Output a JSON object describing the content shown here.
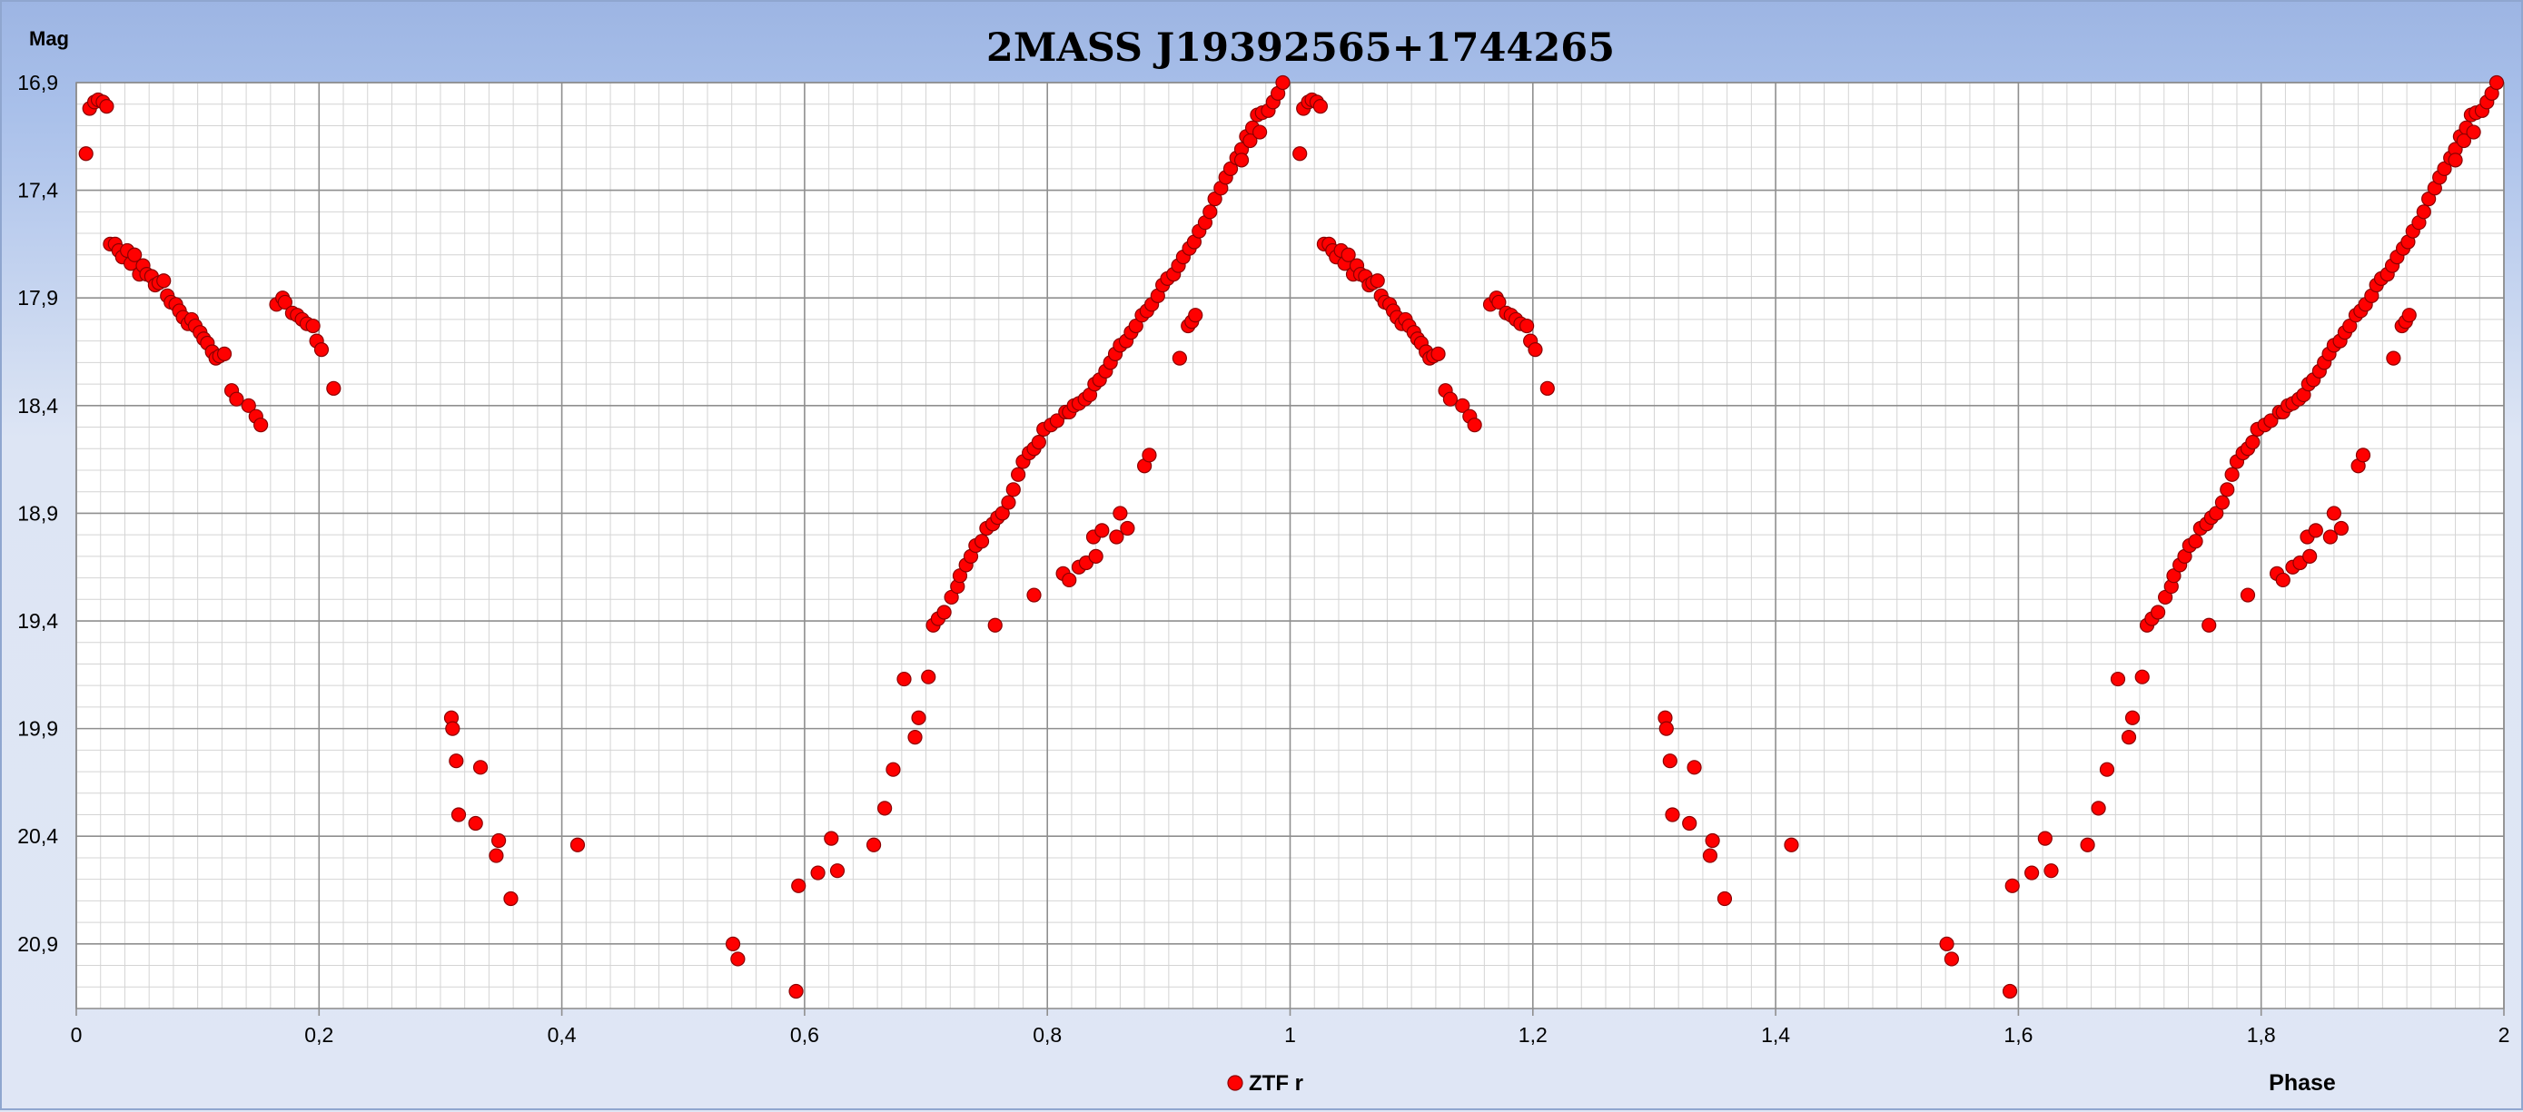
{
  "chart_data": {
    "type": "scatter",
    "title": "2MASS J19392565+1744265",
    "ylabel": "Mag",
    "xlabel": "Phase",
    "xlim": [
      0,
      2
    ],
    "ylim": [
      21.2,
      16.9
    ],
    "y_inverted": true,
    "x_major_ticks": [
      0,
      0.2,
      0.4,
      0.6,
      0.8,
      1,
      1.2,
      1.4,
      1.6,
      1.8,
      2
    ],
    "x_tick_labels": [
      "0",
      "0,2",
      "0,4",
      "0,6",
      "0,8",
      "1",
      "1,2",
      "1,4",
      "1,6",
      "1,8",
      "2"
    ],
    "y_major_ticks": [
      16.9,
      17.4,
      17.9,
      18.4,
      18.9,
      19.4,
      19.9,
      20.4,
      20.9
    ],
    "y_tick_labels": [
      "16,9",
      "17,4",
      "17,9",
      "18,4",
      "18,9",
      "19,4",
      "19,9",
      "20,4",
      "20,9"
    ],
    "grid": true,
    "legend": "bottom-center",
    "series": [
      {
        "name": "ZTF r",
        "color": "#ff0000",
        "points": [
          [
            0.008,
            17.23
          ],
          [
            0.011,
            17.02
          ],
          [
            0.015,
            16.99
          ],
          [
            0.018,
            16.98
          ],
          [
            0.022,
            16.99
          ],
          [
            0.025,
            17.01
          ],
          [
            0.028,
            17.65
          ],
          [
            0.032,
            17.65
          ],
          [
            0.035,
            17.68
          ],
          [
            0.038,
            17.71
          ],
          [
            0.042,
            17.68
          ],
          [
            0.045,
            17.74
          ],
          [
            0.048,
            17.7
          ],
          [
            0.052,
            17.79
          ],
          [
            0.055,
            17.75
          ],
          [
            0.058,
            17.79
          ],
          [
            0.062,
            17.8
          ],
          [
            0.065,
            17.84
          ],
          [
            0.068,
            17.83
          ],
          [
            0.072,
            17.82
          ],
          [
            0.075,
            17.89
          ],
          [
            0.078,
            17.92
          ],
          [
            0.082,
            17.93
          ],
          [
            0.085,
            17.96
          ],
          [
            0.088,
            17.99
          ],
          [
            0.092,
            18.02
          ],
          [
            0.095,
            18.0
          ],
          [
            0.098,
            18.03
          ],
          [
            0.102,
            18.06
          ],
          [
            0.105,
            18.09
          ],
          [
            0.108,
            18.11
          ],
          [
            0.112,
            18.15
          ],
          [
            0.115,
            18.18
          ],
          [
            0.118,
            18.17
          ],
          [
            0.122,
            18.16
          ],
          [
            0.128,
            18.33
          ],
          [
            0.132,
            18.37
          ],
          [
            0.142,
            18.4
          ],
          [
            0.148,
            18.45
          ],
          [
            0.152,
            18.49
          ],
          [
            0.165,
            17.93
          ],
          [
            0.17,
            17.9
          ],
          [
            0.172,
            17.92
          ],
          [
            0.178,
            17.97
          ],
          [
            0.182,
            17.98
          ],
          [
            0.186,
            18.0
          ],
          [
            0.19,
            18.02
          ],
          [
            0.195,
            18.03
          ],
          [
            0.198,
            18.1
          ],
          [
            0.202,
            18.14
          ],
          [
            0.212,
            18.32
          ],
          [
            0.309,
            19.85
          ],
          [
            0.31,
            19.9
          ],
          [
            0.313,
            20.05
          ],
          [
            0.315,
            20.3
          ],
          [
            0.329,
            20.34
          ],
          [
            0.333,
            20.08
          ],
          [
            0.346,
            20.49
          ],
          [
            0.348,
            20.42
          ],
          [
            0.358,
            20.69
          ],
          [
            0.413,
            20.44
          ],
          [
            0.541,
            20.9
          ],
          [
            0.545,
            20.97
          ],
          [
            0.593,
            21.12
          ],
          [
            0.595,
            20.63
          ],
          [
            0.611,
            20.57
          ],
          [
            0.622,
            20.41
          ],
          [
            0.627,
            20.56
          ],
          [
            0.657,
            20.44
          ],
          [
            0.666,
            20.27
          ],
          [
            0.673,
            20.09
          ],
          [
            0.682,
            19.67
          ],
          [
            0.691,
            19.94
          ],
          [
            0.694,
            19.85
          ],
          [
            0.702,
            19.66
          ],
          [
            0.706,
            19.42
          ],
          [
            0.71,
            19.39
          ],
          [
            0.715,
            19.36
          ],
          [
            0.721,
            19.29
          ],
          [
            0.726,
            19.24
          ],
          [
            0.728,
            19.19
          ],
          [
            0.733,
            19.14
          ],
          [
            0.737,
            19.1
          ],
          [
            0.741,
            19.05
          ],
          [
            0.746,
            19.03
          ],
          [
            0.75,
            18.97
          ],
          [
            0.755,
            18.95
          ],
          [
            0.759,
            18.92
          ],
          [
            0.763,
            18.9
          ],
          [
            0.768,
            18.85
          ],
          [
            0.772,
            18.79
          ],
          [
            0.776,
            18.72
          ],
          [
            0.78,
            18.66
          ],
          [
            0.785,
            18.62
          ],
          [
            0.789,
            18.6
          ],
          [
            0.793,
            18.57
          ],
          [
            0.797,
            18.51
          ],
          [
            0.803,
            18.49
          ],
          [
            0.808,
            18.47
          ],
          [
            0.815,
            18.43
          ],
          [
            0.818,
            18.43
          ],
          [
            0.822,
            18.4
          ],
          [
            0.826,
            18.39
          ],
          [
            0.831,
            18.37
          ],
          [
            0.835,
            18.35
          ],
          [
            0.839,
            18.3
          ],
          [
            0.843,
            18.28
          ],
          [
            0.848,
            18.24
          ],
          [
            0.852,
            18.2
          ],
          [
            0.856,
            18.16
          ],
          [
            0.86,
            18.12
          ],
          [
            0.865,
            18.1
          ],
          [
            0.869,
            18.06
          ],
          [
            0.873,
            18.03
          ],
          [
            0.878,
            17.98
          ],
          [
            0.882,
            17.96
          ],
          [
            0.886,
            17.93
          ],
          [
            0.891,
            17.89
          ],
          [
            0.895,
            17.84
          ],
          [
            0.899,
            17.81
          ],
          [
            0.904,
            17.79
          ],
          [
            0.908,
            17.75
          ],
          [
            0.912,
            17.71
          ],
          [
            0.917,
            17.67
          ],
          [
            0.921,
            17.64
          ],
          [
            0.925,
            17.59
          ],
          [
            0.93,
            17.55
          ],
          [
            0.934,
            17.5
          ],
          [
            0.938,
            17.44
          ],
          [
            0.943,
            17.39
          ],
          [
            0.947,
            17.34
          ],
          [
            0.951,
            17.3
          ],
          [
            0.956,
            17.25
          ],
          [
            0.96,
            17.21
          ],
          [
            0.964,
            17.15
          ],
          [
            0.969,
            17.11
          ],
          [
            0.973,
            17.05
          ],
          [
            0.977,
            17.04
          ],
          [
            0.982,
            17.03
          ],
          [
            0.986,
            16.99
          ],
          [
            0.99,
            16.95
          ],
          [
            0.994,
            16.9
          ],
          [
            0.757,
            19.42
          ],
          [
            0.789,
            19.28
          ],
          [
            0.813,
            19.18
          ],
          [
            0.818,
            19.21
          ],
          [
            0.826,
            19.15
          ],
          [
            0.832,
            19.13
          ],
          [
            0.838,
            19.01
          ],
          [
            0.84,
            19.1
          ],
          [
            0.845,
            18.98
          ],
          [
            0.857,
            19.01
          ],
          [
            0.86,
            18.9
          ],
          [
            0.866,
            18.97
          ],
          [
            0.88,
            18.68
          ],
          [
            0.884,
            18.63
          ],
          [
            0.909,
            18.18
          ],
          [
            0.916,
            18.03
          ],
          [
            0.919,
            18.01
          ],
          [
            0.922,
            17.98
          ],
          [
            0.96,
            17.26
          ],
          [
            0.967,
            17.17
          ],
          [
            0.975,
            17.13
          ]
        ]
      }
    ]
  }
}
